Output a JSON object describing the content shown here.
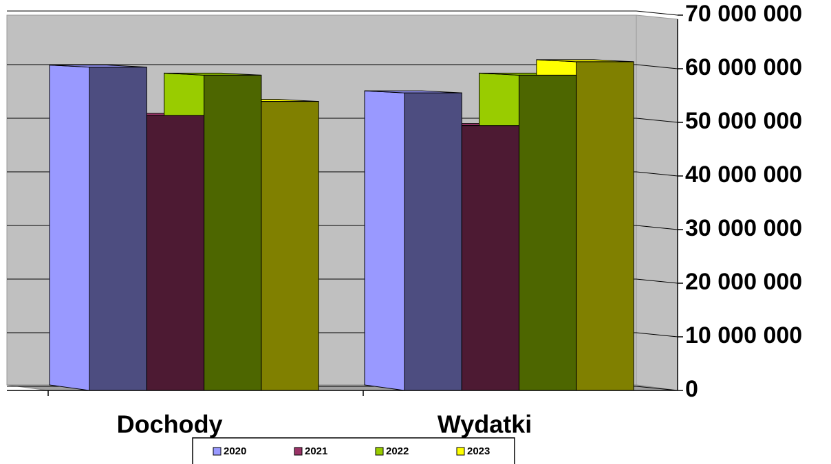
{
  "chart_data": {
    "type": "bar3d",
    "categories": [
      "Dochody",
      "Wydatki"
    ],
    "series": [
      {
        "name": "2020",
        "color": "#9999ff",
        "values": [
          60300000,
          55500000
        ]
      },
      {
        "name": "2021",
        "color": "#993366",
        "values": [
          51300000,
          49400000
        ]
      },
      {
        "name": "2022",
        "color": "#99cc00",
        "values": [
          58800000,
          58800000
        ]
      },
      {
        "name": "2023",
        "color": "#ffff00",
        "values": [
          53900000,
          61300000
        ]
      }
    ],
    "ylim": [
      0,
      70000000
    ],
    "yticks": [
      0,
      {
        "value": 10000000,
        "label": "10 000 000"
      },
      {
        "value": 20000000,
        "label": "20 000 000"
      },
      {
        "value": 30000000,
        "label": "30 000 000"
      },
      {
        "value": 40000000,
        "label": "40 000 000"
      },
      {
        "value": 50000000,
        "label": "50 000 000"
      },
      {
        "value": 60000000,
        "label": "60 000 000"
      },
      {
        "value": 70000000,
        "label": "70 000 000"
      }
    ],
    "grid": true,
    "legend": "bottom"
  }
}
